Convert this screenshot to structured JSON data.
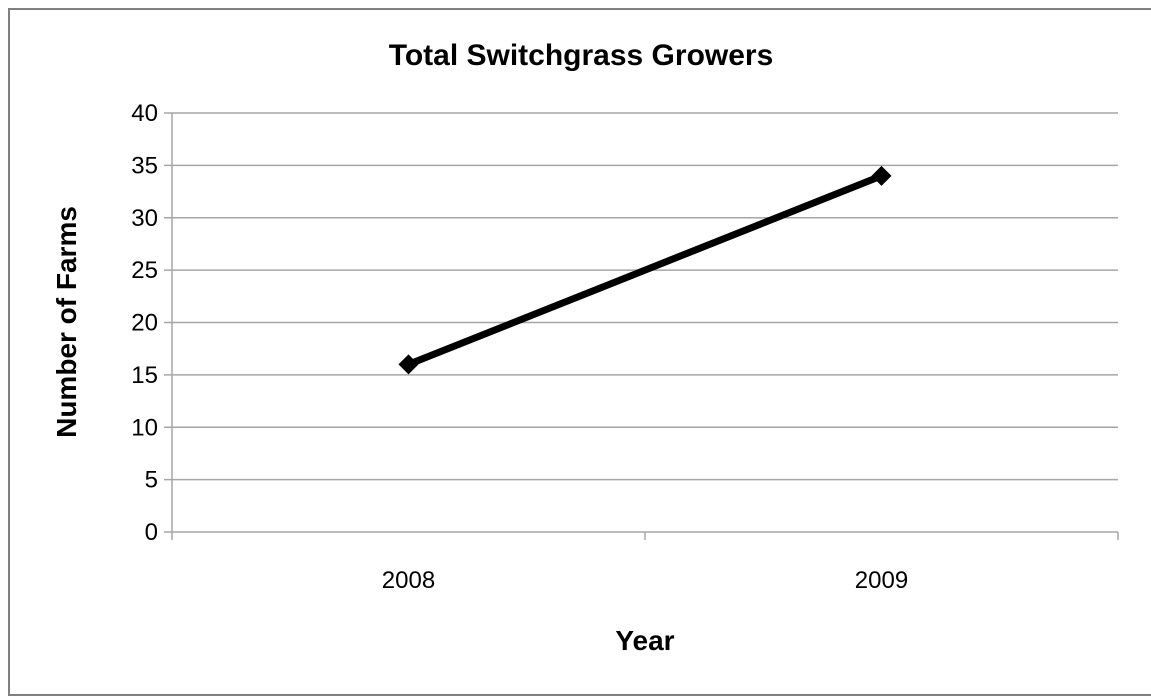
{
  "chart_data": {
    "type": "line",
    "title": "Total Switchgrass Growers",
    "xlabel": "Year",
    "ylabel": "Number of Farms",
    "categories": [
      "2008",
      "2009"
    ],
    "series": [
      {
        "values": [
          16,
          34
        ]
      }
    ],
    "ylim": [
      0,
      40
    ],
    "yticks": [
      0,
      5,
      10,
      15,
      20,
      25,
      30,
      35,
      40
    ],
    "grid": true,
    "legend": "none",
    "colors": {
      "line": "#000000",
      "grid": "#a6a6a6",
      "frame": "#7f7f7f"
    }
  }
}
